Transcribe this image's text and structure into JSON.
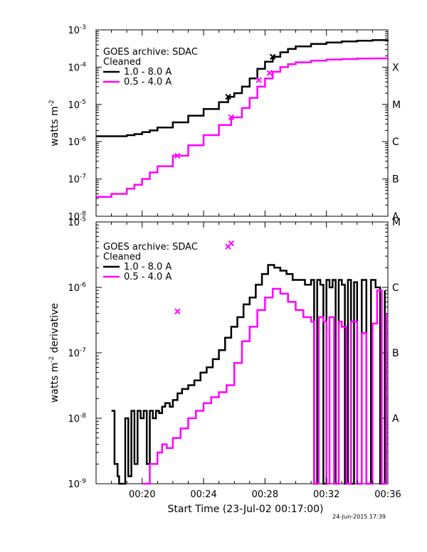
{
  "chart_data": [
    {
      "type": "line",
      "ylabel_prefix": "watts m",
      "ylabel_exp": "-2",
      "yscale": "log",
      "ylim": [
        1e-08,
        0.001
      ],
      "xlim": [
        17.0,
        36.0
      ],
      "xunit": "minutes after 00:00 UT",
      "yticks": [
        {
          "base": "10",
          "exp": "-3",
          "v": 0.001
        },
        {
          "base": "10",
          "exp": "-4",
          "v": 0.0001
        },
        {
          "base": "10",
          "exp": "-5",
          "v": 1e-05
        },
        {
          "base": "10",
          "exp": "-6",
          "v": 1e-06
        },
        {
          "base": "10",
          "exp": "-7",
          "v": 1e-07
        },
        {
          "base": "10",
          "exp": "-8",
          "v": 1e-08
        }
      ],
      "class_labels": [
        {
          "label": "X",
          "v": 0.0001
        },
        {
          "label": "M",
          "v": 1e-05
        },
        {
          "label": "C",
          "v": 1e-06
        },
        {
          "label": "B",
          "v": 1e-07
        },
        {
          "label": "A",
          "v": 1e-08
        }
      ],
      "legend": {
        "line1": "GOES archive: SDAC",
        "line2": "Cleaned",
        "entries": [
          "1.0 - 8.0 A",
          "0.5 - 4.0 A"
        ]
      },
      "series": [
        {
          "name": "1.0 - 8.0 A",
          "color": "#000000",
          "x": [
            17.0,
            18.0,
            19.0,
            19.5,
            20.0,
            20.5,
            21.0,
            22.0,
            23.0,
            24.0,
            25.0,
            25.6,
            26.0,
            26.5,
            27.0,
            27.5,
            28.0,
            28.5,
            29.0,
            29.5,
            30.0,
            31.0,
            32.0,
            33.0,
            34.0,
            35.0,
            36.0
          ],
          "y": [
            1.4e-06,
            1.4e-06,
            1.5e-06,
            1.6e-06,
            1.8e-06,
            2e-06,
            2.4e-06,
            3.3e-06,
            5e-06,
            7.5e-06,
            1.15e-05,
            1.6e-05,
            2e-05,
            3e-05,
            5e-05,
            9e-05,
            0.00014,
            0.00019,
            0.00025,
            0.00031,
            0.00036,
            0.00042,
            0.00046,
            0.00049,
            0.00051,
            0.00053,
            0.00054
          ]
        },
        {
          "name": "0.5 - 4.0 A",
          "color": "#ff00ff",
          "x": [
            17.0,
            18.0,
            19.0,
            19.5,
            20.0,
            20.5,
            21.0,
            22.0,
            23.0,
            24.0,
            25.0,
            25.8,
            26.5,
            27.0,
            27.5,
            28.0,
            28.5,
            29.0,
            29.5,
            30.0,
            31.0,
            32.0,
            33.0,
            34.0,
            35.0,
            36.0
          ],
          "y": [
            3.3e-08,
            4e-08,
            5.5e-08,
            7e-08,
            1e-07,
            1.5e-07,
            2.2e-07,
            4.2e-07,
            8e-07,
            1.5e-06,
            2.8e-06,
            4.5e-06,
            8e-06,
            1.5e-05,
            3e-05,
            5e-05,
            7.5e-05,
            0.0001,
            0.00012,
            0.000135,
            0.00015,
            0.00016,
            0.000165,
            0.00017,
            0.000172,
            0.000175
          ]
        }
      ],
      "markers": [
        {
          "series": 0,
          "x": 25.6,
          "y": 1.6e-05
        },
        {
          "series": 0,
          "x": 28.5,
          "y": 0.00019
        },
        {
          "series": 1,
          "x": 22.3,
          "y": 4.2e-07
        },
        {
          "series": 1,
          "x": 25.8,
          "y": 4.5e-06
        },
        {
          "series": 1,
          "x": 27.6,
          "y": 4.5e-05
        },
        {
          "series": 1,
          "x": 28.3,
          "y": 7e-05
        }
      ]
    },
    {
      "type": "line",
      "ylabel_prefix": "watts m",
      "ylabel_exp": "-2",
      "ylabel_suffix": " derivative",
      "yscale": "log",
      "ylim": [
        1e-09,
        1e-05
      ],
      "xlim": [
        17.0,
        36.0
      ],
      "xunit": "minutes after 00:00 UT",
      "yticks": [
        {
          "base": "10",
          "exp": "-5",
          "v": 1e-05
        },
        {
          "base": "10",
          "exp": "-6",
          "v": 1e-06
        },
        {
          "base": "10",
          "exp": "-7",
          "v": 1e-07
        },
        {
          "base": "10",
          "exp": "-8",
          "v": 1e-08
        },
        {
          "base": "10",
          "exp": "-9",
          "v": 1e-09
        }
      ],
      "class_labels": [
        {
          "label": "M",
          "v": 1e-05
        },
        {
          "label": "C",
          "v": 1e-06
        },
        {
          "label": "B",
          "v": 1e-07
        },
        {
          "label": "A",
          "v": 1e-08
        }
      ],
      "legend": {
        "line1": "GOES archive: SDAC",
        "line2": "Cleaned",
        "entries": [
          "1.0 - 8.0 A",
          "0.5 - 4.0 A"
        ]
      },
      "series": [
        {
          "name": "1.0 - 8.0 A",
          "color": "#000000",
          "x": [
            18.0,
            18.2,
            18.4,
            18.5,
            18.9,
            19.1,
            19.3,
            19.5,
            19.7,
            19.9,
            20.1,
            20.3,
            20.5,
            20.7,
            20.9,
            21.1,
            21.3,
            21.5,
            21.8,
            22.0,
            22.3,
            22.6,
            23.0,
            23.4,
            23.8,
            24.2,
            24.6,
            25.0,
            25.4,
            25.8,
            26.2,
            26.6,
            27.0,
            27.4,
            27.8,
            28.2,
            28.6,
            29.0,
            29.4,
            29.8,
            30.2,
            30.6,
            31.0,
            31.2,
            31.4,
            31.6,
            31.8,
            32.0,
            32.2,
            32.4,
            32.6,
            32.8,
            33.0,
            33.2,
            33.4,
            33.6,
            33.8,
            34.0,
            34.3,
            34.6,
            34.9,
            35.2,
            35.5,
            35.8
          ],
          "y": [
            1.3e-08,
            2e-09,
            1.3e-09,
            1e-09,
            1e-08,
            1.3e-09,
            1.3e-08,
            2e-09,
            1.3e-08,
            1e-08,
            1.3e-08,
            2e-09,
            1.3e-08,
            1e-08,
            1.3e-08,
            1.2e-08,
            1.5e-08,
            1.7e-08,
            1.5e-08,
            1.9e-08,
            2.4e-08,
            2.8e-08,
            3.2e-08,
            3.8e-08,
            5e-08,
            6e-08,
            8e-08,
            1.1e-07,
            1.7e-07,
            2.5e-07,
            3.5e-07,
            5.5e-07,
            7e-07,
            1.1e-06,
            1.6e-06,
            2.2e-06,
            2e-06,
            1.8e-06,
            1.6e-06,
            1.3e-06,
            1.3e-06,
            1.1e-06,
            1.3e-06,
            1e-09,
            1.3e-06,
            1.1e-06,
            1e-09,
            1.3e-06,
            1e-06,
            1.3e-06,
            1e-09,
            1.3e-06,
            1.1e-06,
            1e-09,
            1.3e-06,
            1e-09,
            1.2e-06,
            1e-09,
            1.3e-06,
            1e-09,
            1.3e-06,
            1e-06,
            1e-09,
            9e-07
          ]
        },
        {
          "name": "0.5 - 4.0 A",
          "color": "#ff00ff",
          "x": [
            20.0,
            20.5,
            21.0,
            21.3,
            21.6,
            22.0,
            22.5,
            23.0,
            23.5,
            24.0,
            24.5,
            25.0,
            25.5,
            26.0,
            26.5,
            27.0,
            27.5,
            28.0,
            28.5,
            29.0,
            29.5,
            30.0,
            30.5,
            31.0,
            31.2,
            31.5,
            31.8,
            32.0,
            32.2,
            32.5,
            32.8,
            33.0,
            33.3,
            33.6,
            34.0,
            34.3,
            34.6,
            35.0,
            35.3,
            35.6,
            35.9
          ],
          "y": [
            1e-09,
            2e-09,
            3e-09,
            4e-09,
            3.5e-09,
            5e-09,
            7e-09,
            1e-08,
            1.3e-08,
            1.7e-08,
            2.1e-08,
            2.5e-08,
            3.2e-08,
            7e-08,
            1.5e-07,
            2.5e-07,
            4.5e-07,
            7e-07,
            9.5e-07,
            8e-07,
            6e-07,
            4.5e-07,
            3.5e-07,
            3e-07,
            1e-09,
            3.5e-07,
            3e-07,
            1e-09,
            3.5e-07,
            1e-09,
            3e-07,
            2.5e-07,
            1e-09,
            3e-07,
            1e-09,
            2e-07,
            1e-09,
            2.8e-07,
            9e-07,
            1e-09,
            4e-07
          ]
        }
      ],
      "markers": [
        {
          "series": 1,
          "x": 22.3,
          "y": 4.3e-07
        },
        {
          "series": 1,
          "x": 25.6,
          "y": 4.2e-06
        },
        {
          "series": 1,
          "x": 25.8,
          "y": 4.7e-06
        }
      ]
    }
  ],
  "xaxis": {
    "ticks": [
      {
        "label": "00:20",
        "v": 20
      },
      {
        "label": "00:24",
        "v": 24
      },
      {
        "label": "00:28",
        "v": 28
      },
      {
        "label": "00:32",
        "v": 32
      },
      {
        "label": "00:36",
        "v": 36
      }
    ],
    "title": "Start Time (23-Jul-02 00:17:00)"
  },
  "timestamp": "24-Jun-2015 17:39"
}
